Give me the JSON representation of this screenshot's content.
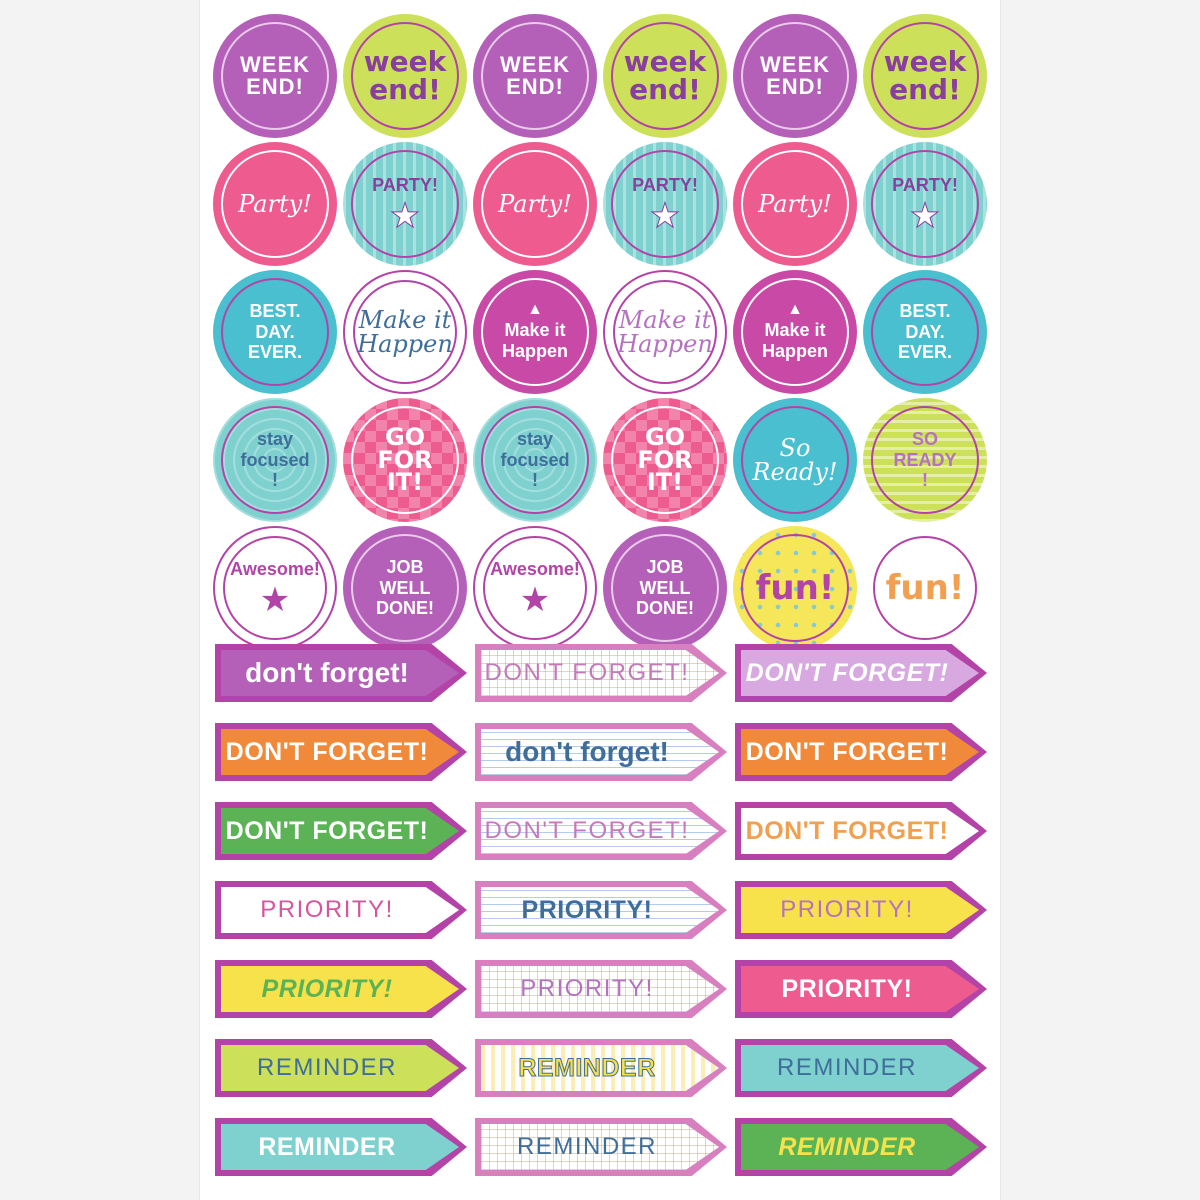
{
  "circle_stickers": [
    {
      "text": "WEEK\nEND!",
      "bg": "#b45fb8",
      "fg": "#ffffff",
      "ring": "#e9cbe9",
      "style": "caps",
      "pattern": ""
    },
    {
      "text": "week\nend!",
      "bg": "#cde05a",
      "fg": "#8a3f9e",
      "ring": "#b443a8",
      "style": "lower",
      "pattern": ""
    },
    {
      "text": "WEEK\nEND!",
      "bg": "#b45fb8",
      "fg": "#ffffff",
      "ring": "#e9cbe9",
      "style": "caps",
      "pattern": ""
    },
    {
      "text": "week\nend!",
      "bg": "#cde05a",
      "fg": "#8a3f9e",
      "ring": "#b443a8",
      "style": "lower",
      "pattern": ""
    },
    {
      "text": "WEEK\nEND!",
      "bg": "#b45fb8",
      "fg": "#ffffff",
      "ring": "#e9cbe9",
      "style": "caps",
      "pattern": ""
    },
    {
      "text": "week\nend!",
      "bg": "#cde05a",
      "fg": "#8a3f9e",
      "ring": "#b443a8",
      "style": "lower",
      "pattern": ""
    },
    {
      "text": "Party!",
      "bg": "#ee5b8f",
      "fg": "#ffffff",
      "ring": "#ffffff",
      "style": "script",
      "pattern": ""
    },
    {
      "text": "PARTY!",
      "bg": "#7fd1d0",
      "fg": "#8a3f9e",
      "ring": "#b443a8",
      "style": "mid",
      "pattern": "stripes-v",
      "icon": "star-icon"
    },
    {
      "text": "Party!",
      "bg": "#ee5b8f",
      "fg": "#ffffff",
      "ring": "#ffffff",
      "style": "script",
      "pattern": ""
    },
    {
      "text": "PARTY!",
      "bg": "#7fd1d0",
      "fg": "#8a3f9e",
      "ring": "#b443a8",
      "style": "mid",
      "pattern": "stripes-v",
      "icon": "star-icon"
    },
    {
      "text": "Party!",
      "bg": "#ee5b8f",
      "fg": "#ffffff",
      "ring": "#ffffff",
      "style": "script",
      "pattern": ""
    },
    {
      "text": "PARTY!",
      "bg": "#7fd1d0",
      "fg": "#8a3f9e",
      "ring": "#b443a8",
      "style": "mid",
      "pattern": "stripes-v",
      "icon": "star-icon"
    },
    {
      "text": "BEST.\nDAY.\nEVER.",
      "bg": "#49bfd0",
      "fg": "#ffffff",
      "ring": "#b443a8",
      "style": "mid",
      "pattern": ""
    },
    {
      "text": "Make it\nHappen",
      "bg": "#ffffff",
      "fg": "#3f6e9a",
      "ring": "#b443a8",
      "style": "script",
      "pattern": "",
      "border": "#b443a8"
    },
    {
      "text": "Make it\nHappen",
      "bg": "#c94aa6",
      "fg": "#ffffff",
      "ring": "#ffffff",
      "style": "mid",
      "pattern": "",
      "icon": "arrow-up-icon"
    },
    {
      "text": "Make it\nHappen",
      "bg": "#ffffff",
      "fg": "#b472c0",
      "ring": "#b443a8",
      "style": "script",
      "pattern": "",
      "border": "#b443a8"
    },
    {
      "text": "Make it\nHappen",
      "bg": "#c94aa6",
      "fg": "#ffffff",
      "ring": "#ffffff",
      "style": "mid",
      "pattern": "",
      "icon": "arrow-up-icon"
    },
    {
      "text": "BEST.\nDAY.\nEVER.",
      "bg": "#49bfd0",
      "fg": "#ffffff",
      "ring": "#b443a8",
      "style": "mid",
      "pattern": ""
    },
    {
      "text": "stay\nfocused\n!",
      "bg": "#7fd1d0",
      "fg": "#3f6e9a",
      "ring": "#b443a8",
      "style": "mid",
      "pattern": "rings-bg"
    },
    {
      "text": "GO\nFOR\nIT!",
      "bg": "#ee5b8f",
      "fg": "#ffffff",
      "ring": "#ffffff",
      "style": "bigcaps",
      "pattern": "diamonds"
    },
    {
      "text": "stay\nfocused\n!",
      "bg": "#7fd1d0",
      "fg": "#3f6e9a",
      "ring": "#b443a8",
      "style": "mid",
      "pattern": "rings-bg"
    },
    {
      "text": "GO\nFOR\nIT!",
      "bg": "#ee5b8f",
      "fg": "#ffffff",
      "ring": "#ffffff",
      "style": "bigcaps",
      "pattern": "diamonds"
    },
    {
      "text": "So\nReady!",
      "bg": "#49bfd0",
      "fg": "#ffffff",
      "ring": "#b443a8",
      "style": "script",
      "pattern": ""
    },
    {
      "text": "SO\nREADY\n!",
      "bg": "#cde05a",
      "fg": "#b472c0",
      "ring": "#b443a8",
      "style": "mid",
      "pattern": "stripes-h"
    },
    {
      "text": "Awesome!",
      "bg": "#ffffff",
      "fg": "#b443a8",
      "ring": "#b443a8",
      "style": "mid",
      "pattern": "",
      "icon": "star-icon",
      "border": "#b443a8"
    },
    {
      "text": "JOB\nWELL\nDONE!",
      "bg": "#b45fb8",
      "fg": "#ffffff",
      "ring": "#e9cbe9",
      "style": "mid",
      "pattern": ""
    },
    {
      "text": "Awesome!",
      "bg": "#ffffff",
      "fg": "#b443a8",
      "ring": "#b443a8",
      "style": "mid",
      "pattern": "",
      "icon": "star-icon",
      "border": "#b443a8"
    },
    {
      "text": "JOB\nWELL\nDONE!",
      "bg": "#b45fb8",
      "fg": "#ffffff",
      "ring": "#e9cbe9",
      "style": "mid",
      "pattern": ""
    },
    {
      "text": "fun!",
      "bg": "#f5e65a",
      "fg": "#b443a8",
      "ring": "#b443a8",
      "style": "fun",
      "pattern": "dots-bg"
    },
    {
      "text": "fun!",
      "bg": "#ffffff",
      "fg": "#f0a050",
      "ring": "#b443a8",
      "style": "fun",
      "pattern": "",
      "border": "#ffffff"
    }
  ],
  "arrow_labels": [
    {
      "text": "don't forget!",
      "outer": "#b443a8",
      "inner": "#b45fb8",
      "fg": "#ffffff",
      "style": "lower",
      "pattern": ""
    },
    {
      "text": "DON'T FORGET!",
      "outer": "#d77fbf",
      "inner": "#ffffff",
      "fg": "#c47ab8",
      "style": "light",
      "pattern": "grid-lines"
    },
    {
      "text": "DON'T FORGET!",
      "outer": "#b443a8",
      "inner": "#d7a9e0",
      "fg": "#ffffff",
      "style": "italic",
      "pattern": ""
    },
    {
      "text": "DON'T FORGET!",
      "outer": "#b443a8",
      "inner": "#f08a3a",
      "fg": "#ffffff",
      "style": "caps",
      "pattern": ""
    },
    {
      "text": "don't forget!",
      "outer": "#d77fbf",
      "inner": "#ffffff",
      "fg": "#3f6e9a",
      "style": "lower",
      "pattern": "ruled"
    },
    {
      "text": "DON'T FORGET!",
      "outer": "#b443a8",
      "inner": "#f08a3a",
      "fg": "#ffffff",
      "style": "caps",
      "pattern": ""
    },
    {
      "text": "DON'T FORGET!",
      "outer": "#b443a8",
      "inner": "#5bb356",
      "fg": "#ffffff",
      "style": "caps",
      "pattern": ""
    },
    {
      "text": "DON'T FORGET!",
      "outer": "#d77fbf",
      "inner": "#ffffff",
      "fg": "#c47ab8",
      "style": "light",
      "pattern": "ruled"
    },
    {
      "text": "DON'T FORGET!",
      "outer": "#b443a8",
      "inner": "#ffffff",
      "fg": "#f0a050",
      "style": "caps",
      "pattern": ""
    },
    {
      "text": "PRIORITY!",
      "outer": "#b443a8",
      "inner": "#ffffff",
      "fg": "#d6559c",
      "style": "light",
      "pattern": ""
    },
    {
      "text": "PRIORITY!",
      "outer": "#d77fbf",
      "inner": "#ffffff",
      "fg": "#3f6e9a",
      "style": "caps",
      "pattern": "ruled"
    },
    {
      "text": "PRIORITY!",
      "outer": "#b443a8",
      "inner": "#f7e24c",
      "fg": "#b472c0",
      "style": "light",
      "pattern": ""
    },
    {
      "text": "PRIORITY!",
      "outer": "#b443a8",
      "inner": "#f7e24c",
      "fg": "#5bb356",
      "style": "italic",
      "pattern": ""
    },
    {
      "text": "PRIORITY!",
      "outer": "#d77fbf",
      "inner": "#ffffff",
      "fg": "#b472c0",
      "style": "light",
      "pattern": "grid-lines"
    },
    {
      "text": "PRIORITY!",
      "outer": "#b443a8",
      "inner": "#ee5b8f",
      "fg": "#ffffff",
      "style": "caps",
      "pattern": ""
    },
    {
      "text": "REMINDER",
      "outer": "#b443a8",
      "inner": "#cde05a",
      "fg": "#3f6e9a",
      "style": "light",
      "pattern": ""
    },
    {
      "text": "REMINDER",
      "outer": "#d77fbf",
      "inner": "#ffffff",
      "fg": "#f7e24c",
      "style": "caps",
      "pattern": "vstripe"
    },
    {
      "text": "REMINDER",
      "outer": "#b443a8",
      "inner": "#7fd1d0",
      "fg": "#3f6e9a",
      "style": "light",
      "pattern": ""
    },
    {
      "text": "REMINDER",
      "outer": "#b443a8",
      "inner": "#7fd1d0",
      "fg": "#ffffff",
      "style": "caps",
      "pattern": ""
    },
    {
      "text": "REMINDER",
      "outer": "#d77fbf",
      "inner": "#ffffff",
      "fg": "#3f6e9a",
      "style": "light",
      "pattern": "grid-lines"
    },
    {
      "text": "REMINDER",
      "outer": "#b443a8",
      "inner": "#5bb356",
      "fg": "#f7e24c",
      "style": "italic",
      "pattern": ""
    }
  ]
}
